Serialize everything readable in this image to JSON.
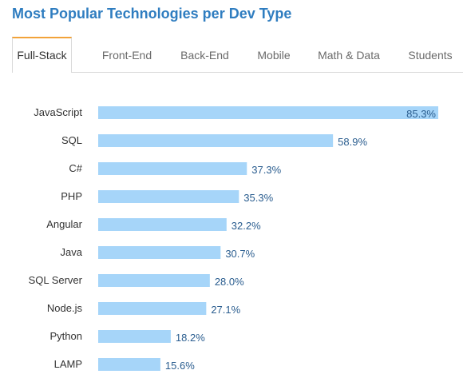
{
  "title": "Most Popular Technologies per Dev Type",
  "tabs": [
    {
      "label": "Full-Stack",
      "active": true
    },
    {
      "label": "Front-End",
      "active": false
    },
    {
      "label": "Back-End",
      "active": false
    },
    {
      "label": "Mobile",
      "active": false
    },
    {
      "label": "Math & Data",
      "active": false
    },
    {
      "label": "Students",
      "active": false
    }
  ],
  "colors": {
    "bar": "#a6d5f9",
    "title": "#2f7dc0",
    "active_tab_accent": "#f2a33a",
    "value_text": "#2a5d8f"
  },
  "chart_data": {
    "type": "bar",
    "orientation": "horizontal",
    "categories": [
      "JavaScript",
      "SQL",
      "C#",
      "PHP",
      "Angular",
      "Java",
      "SQL Server",
      "Node.js",
      "Python",
      "LAMP"
    ],
    "values": [
      85.3,
      58.9,
      37.3,
      35.3,
      32.2,
      30.7,
      28.0,
      27.1,
      18.2,
      15.6
    ],
    "value_labels": [
      "85.3%",
      "58.9%",
      "37.3%",
      "35.3%",
      "32.2%",
      "30.7%",
      "28.0%",
      "27.1%",
      "18.2%",
      "15.6%"
    ],
    "xlim": [
      0,
      85.3
    ],
    "grid": false,
    "legend": "none"
  }
}
